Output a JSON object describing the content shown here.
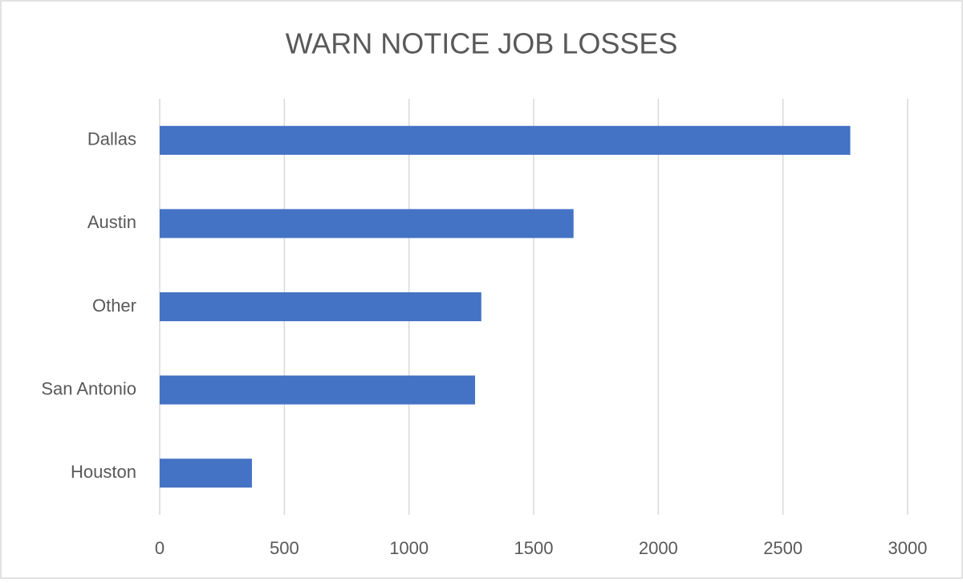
{
  "chart_data": {
    "type": "bar",
    "orientation": "horizontal",
    "title": "WARN NOTICE JOB LOSSES",
    "categories": [
      "Dallas",
      "Austin",
      "Other",
      "San Antonio",
      "Houston"
    ],
    "values": [
      2770,
      1660,
      1290,
      1265,
      370
    ],
    "color": "#4472c4",
    "xlim": [
      0,
      3000
    ],
    "xticks": [
      0,
      500,
      1000,
      1500,
      2000,
      2500,
      3000
    ],
    "grid": true
  }
}
